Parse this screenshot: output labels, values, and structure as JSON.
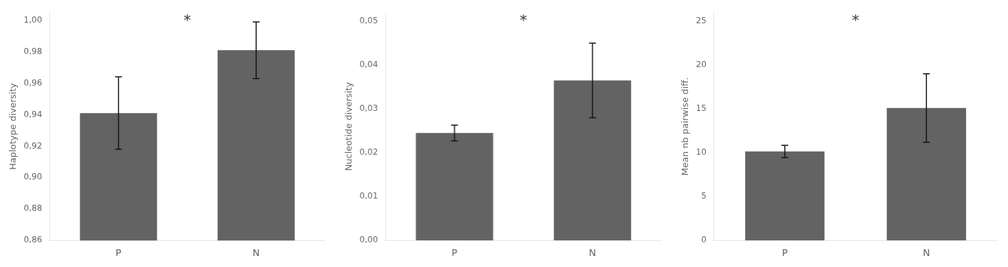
{
  "chart_data": [
    {
      "type": "bar",
      "ylabel": "Haplotype diversity",
      "categories": [
        "P",
        "N"
      ],
      "values": [
        0.941,
        0.981
      ],
      "errors_up": [
        0.023,
        0.018
      ],
      "errors_down": [
        0.023,
        0.018
      ],
      "color": "#636363",
      "ylim": [
        0.86,
        1.005
      ],
      "yticks": [
        {
          "value": 0.86,
          "label": "0,86"
        },
        {
          "value": 0.88,
          "label": "0,88"
        },
        {
          "value": 0.9,
          "label": "0,90"
        },
        {
          "value": 0.92,
          "label": "0,92"
        },
        {
          "value": 0.94,
          "label": "0,94"
        },
        {
          "value": 0.96,
          "label": "0,96"
        },
        {
          "value": 0.98,
          "label": "0,98"
        },
        {
          "value": 1.0,
          "label": "1,00"
        }
      ],
      "annotations": [
        "*"
      ],
      "grid": false
    },
    {
      "type": "bar",
      "ylabel": "Nucleotide diversity",
      "categories": [
        "P",
        "N"
      ],
      "values": [
        0.0245,
        0.0365
      ],
      "errors_up": [
        0.0018,
        0.0085
      ],
      "errors_down": [
        0.0018,
        0.0085
      ],
      "color": "#636363",
      "ylim": [
        0.0,
        0.052
      ],
      "yticks": [
        {
          "value": 0.0,
          "label": "0,00"
        },
        {
          "value": 0.01,
          "label": "0,01"
        },
        {
          "value": 0.02,
          "label": "0,02"
        },
        {
          "value": 0.03,
          "label": "0,03"
        },
        {
          "value": 0.04,
          "label": "0,04"
        },
        {
          "value": 0.05,
          "label": "0,05"
        }
      ],
      "annotations": [
        "*"
      ],
      "grid": false
    },
    {
      "type": "bar",
      "ylabel": "Mean nb pairwise diff.",
      "categories": [
        "P",
        "N"
      ],
      "values": [
        10.15,
        15.1
      ],
      "errors_up": [
        0.7,
        3.9
      ],
      "errors_down": [
        0.7,
        3.9
      ],
      "color": "#636363",
      "ylim": [
        0,
        26
      ],
      "yticks": [
        0,
        5,
        10,
        15,
        20,
        25
      ],
      "annotations": [
        "*"
      ],
      "grid": false
    }
  ]
}
